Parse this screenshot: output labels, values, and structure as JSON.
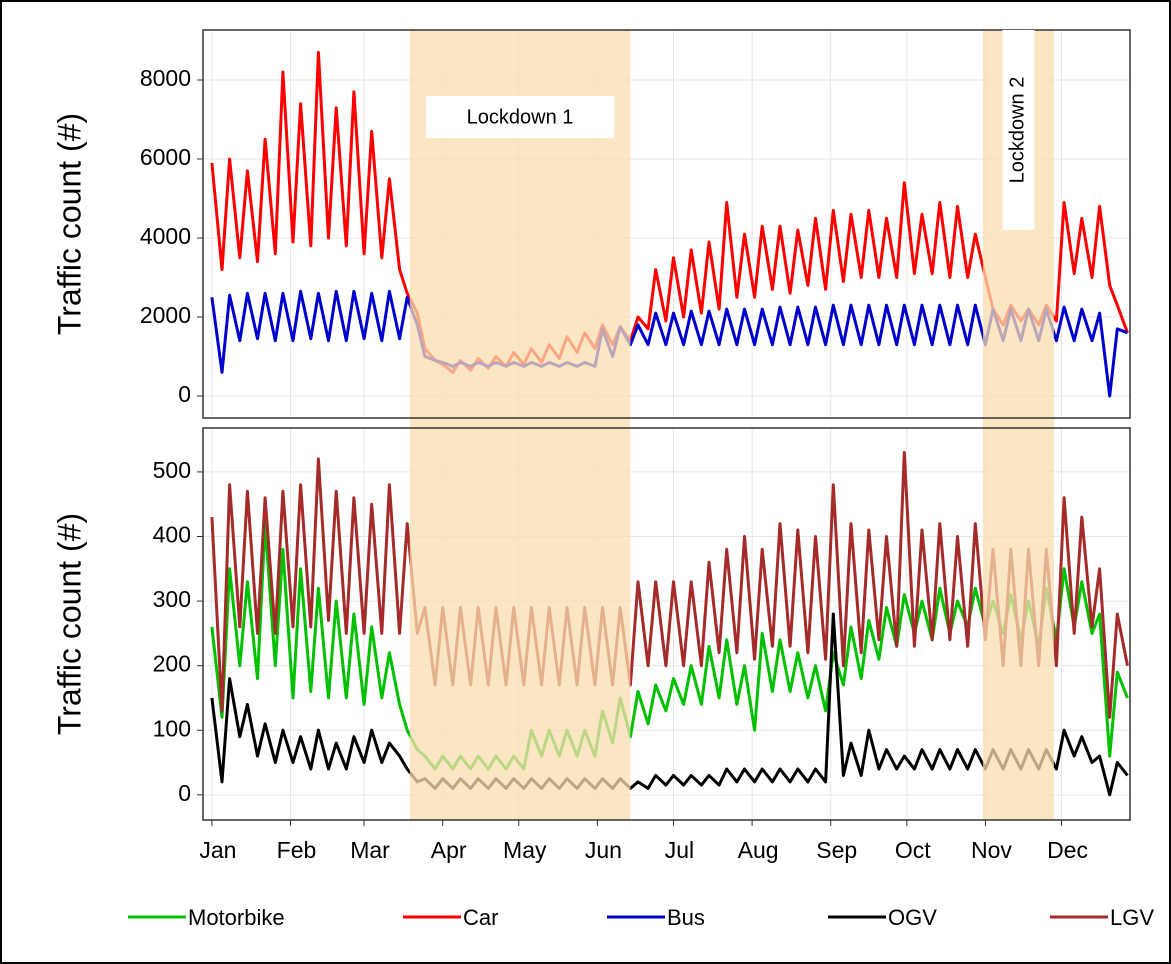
{
  "chart_data": [
    {
      "type": "line",
      "ylabel": "Traffic count (#)",
      "x": [
        1,
        5,
        8,
        12,
        15,
        19,
        22,
        26,
        29,
        33,
        36,
        40,
        43,
        47,
        50,
        54,
        57,
        61,
        64,
        68,
        71,
        75,
        78,
        82,
        85,
        89,
        92,
        96,
        99,
        103,
        106,
        110,
        113,
        117,
        120,
        124,
        127,
        131,
        134,
        138,
        141,
        145,
        148,
        152,
        155,
        159,
        162,
        166,
        169,
        173,
        176,
        180,
        183,
        187,
        190,
        194,
        197,
        201,
        204,
        208,
        211,
        215,
        218,
        222,
        225,
        229,
        232,
        236,
        239,
        243,
        246,
        250,
        253,
        257,
        260,
        264,
        267,
        271,
        274,
        278,
        281,
        285,
        288,
        292,
        295,
        299,
        302,
        306,
        309,
        313,
        316,
        320,
        323,
        327,
        330,
        334,
        337,
        341,
        344,
        348,
        351,
        355,
        358,
        362
      ],
      "xlim": [
        -2.5,
        363
      ],
      "xticks": [
        1,
        32,
        61,
        92,
        122,
        153,
        183,
        214,
        245,
        275,
        306,
        336
      ],
      "ylim": [
        -557,
        9266
      ],
      "yticks": [
        0,
        2000,
        4000,
        6000,
        8000
      ],
      "grid": true,
      "shaded_regions": [
        {
          "label": "Lockdown 1",
          "start": 79,
          "end": 166,
          "color": "#f9deb0"
        },
        {
          "label": "Lockdown 2",
          "start": 305,
          "end": 333,
          "color": "#f9deb0"
        }
      ],
      "series": [
        {
          "name": "Car",
          "color": "#ff0000",
          "values": [
            5900,
            3200,
            6000,
            3500,
            5700,
            3400,
            6500,
            3600,
            8200,
            3900,
            7400,
            3800,
            8700,
            4000,
            7300,
            3800,
            7700,
            3600,
            6700,
            3500,
            5500,
            3200,
            2600,
            2100,
            1200,
            900,
            800,
            600,
            900,
            650,
            950,
            700,
            1000,
            750,
            1100,
            800,
            1200,
            850,
            1300,
            950,
            1500,
            1100,
            1600,
            1200,
            1800,
            1300,
            1750,
            1400,
            2000,
            1700,
            3200,
            1900,
            3500,
            2000,
            3700,
            2100,
            3900,
            2200,
            4900,
            2500,
            4100,
            2500,
            4300,
            2700,
            4300,
            2600,
            4200,
            2800,
            4500,
            2700,
            4700,
            2900,
            4600,
            3000,
            4700,
            3000,
            4500,
            3000,
            5400,
            3100,
            4600,
            3100,
            4900,
            3000,
            4800,
            3000,
            4100,
            3000,
            2200,
            1800,
            2300,
            1900,
            2200,
            1800,
            2300,
            1900,
            4900,
            3100,
            4500,
            3000,
            4800,
            2800,
            2300,
            1600
          ]
        },
        {
          "name": "Bus",
          "color": "#0000cc",
          "values": [
            2500,
            600,
            2550,
            1400,
            2600,
            1450,
            2600,
            1400,
            2600,
            1400,
            2650,
            1450,
            2600,
            1400,
            2650,
            1400,
            2650,
            1450,
            2600,
            1400,
            2650,
            1450,
            2500,
            1800,
            1000,
            900,
            850,
            750,
            850,
            750,
            850,
            750,
            850,
            750,
            850,
            750,
            850,
            750,
            850,
            750,
            850,
            750,
            850,
            750,
            1700,
            1000,
            1750,
            1300,
            1800,
            1300,
            2100,
            1300,
            2100,
            1300,
            2150,
            1300,
            2150,
            1300,
            2200,
            1300,
            2200,
            1300,
            2200,
            1300,
            2250,
            1300,
            2250,
            1300,
            2250,
            1300,
            2300,
            1300,
            2300,
            1300,
            2300,
            1300,
            2300,
            1300,
            2300,
            1300,
            2300,
            1300,
            2300,
            1300,
            2300,
            1300,
            2300,
            1300,
            2200,
            1400,
            2200,
            1400,
            2200,
            1400,
            2200,
            1400,
            2250,
            1400,
            2200,
            1400,
            2100,
            0,
            1700,
            1600
          ]
        }
      ]
    },
    {
      "type": "line",
      "ylabel": "Traffic count (#)",
      "x": [
        1,
        5,
        8,
        12,
        15,
        19,
        22,
        26,
        29,
        33,
        36,
        40,
        43,
        47,
        50,
        54,
        57,
        61,
        64,
        68,
        71,
        75,
        78,
        82,
        85,
        89,
        92,
        96,
        99,
        103,
        106,
        110,
        113,
        117,
        120,
        124,
        127,
        131,
        134,
        138,
        141,
        145,
        148,
        152,
        155,
        159,
        162,
        166,
        169,
        173,
        176,
        180,
        183,
        187,
        190,
        194,
        197,
        201,
        204,
        208,
        211,
        215,
        218,
        222,
        225,
        229,
        232,
        236,
        239,
        243,
        246,
        250,
        253,
        257,
        260,
        264,
        267,
        271,
        274,
        278,
        281,
        285,
        288,
        292,
        295,
        299,
        302,
        306,
        309,
        313,
        316,
        320,
        323,
        327,
        330,
        334,
        337,
        341,
        344,
        348,
        351,
        355,
        358,
        362
      ],
      "xlim": [
        -2.5,
        363
      ],
      "xticks": [
        {
          "value": 1,
          "label": "Jan"
        },
        {
          "value": 32,
          "label": "Feb"
        },
        {
          "value": 61,
          "label": "Mar"
        },
        {
          "value": 92,
          "label": "Apr"
        },
        {
          "value": 122,
          "label": "May"
        },
        {
          "value": 153,
          "label": "Jun"
        },
        {
          "value": 183,
          "label": "Jul"
        },
        {
          "value": 214,
          "label": "Aug"
        },
        {
          "value": 245,
          "label": "Sep"
        },
        {
          "value": 275,
          "label": "Oct"
        },
        {
          "value": 306,
          "label": "Nov"
        },
        {
          "value": 336,
          "label": "Dec"
        }
      ],
      "ylim": [
        -39,
        568
      ],
      "yticks": [
        0,
        100,
        200,
        300,
        400,
        500
      ],
      "grid": true,
      "series": [
        {
          "name": "Motorbike",
          "color": "#00c000",
          "values": [
            260,
            120,
            350,
            200,
            330,
            180,
            420,
            200,
            380,
            150,
            350,
            160,
            320,
            150,
            300,
            150,
            280,
            140,
            260,
            150,
            220,
            140,
            100,
            70,
            60,
            40,
            60,
            40,
            60,
            40,
            60,
            40,
            60,
            40,
            60,
            40,
            100,
            60,
            100,
            60,
            100,
            60,
            100,
            60,
            130,
            80,
            150,
            90,
            160,
            110,
            170,
            130,
            180,
            140,
            200,
            140,
            230,
            150,
            240,
            140,
            200,
            100,
            250,
            160,
            240,
            160,
            220,
            150,
            200,
            130,
            220,
            170,
            260,
            180,
            270,
            210,
            290,
            230,
            310,
            250,
            300,
            240,
            320,
            250,
            300,
            260,
            320,
            260,
            300,
            250,
            310,
            240,
            300,
            230,
            320,
            240,
            350,
            260,
            330,
            250,
            280,
            60,
            190,
            150
          ]
        },
        {
          "name": "OGV",
          "color": "#000000",
          "values": [
            150,
            20,
            180,
            90,
            140,
            60,
            110,
            50,
            100,
            50,
            90,
            40,
            100,
            40,
            80,
            40,
            90,
            50,
            100,
            50,
            80,
            60,
            40,
            20,
            25,
            10,
            25,
            10,
            25,
            10,
            25,
            10,
            25,
            10,
            25,
            10,
            25,
            10,
            25,
            10,
            25,
            10,
            25,
            10,
            25,
            10,
            25,
            10,
            20,
            10,
            30,
            15,
            30,
            15,
            30,
            15,
            30,
            15,
            40,
            20,
            40,
            20,
            40,
            20,
            40,
            20,
            40,
            20,
            40,
            20,
            280,
            30,
            80,
            30,
            100,
            40,
            70,
            40,
            60,
            40,
            70,
            40,
            70,
            40,
            70,
            40,
            70,
            40,
            70,
            40,
            70,
            40,
            70,
            40,
            70,
            40,
            100,
            60,
            90,
            50,
            60,
            0,
            50,
            30
          ]
        },
        {
          "name": "LGV",
          "color": "#a52a2a",
          "values": [
            430,
            130,
            480,
            260,
            470,
            250,
            460,
            250,
            470,
            260,
            480,
            260,
            520,
            270,
            470,
            250,
            460,
            250,
            450,
            250,
            480,
            250,
            420,
            250,
            290,
            170,
            290,
            170,
            290,
            170,
            290,
            170,
            290,
            170,
            290,
            170,
            290,
            170,
            290,
            170,
            290,
            170,
            290,
            170,
            290,
            170,
            290,
            170,
            330,
            200,
            330,
            200,
            330,
            200,
            330,
            200,
            360,
            220,
            380,
            220,
            400,
            210,
            380,
            230,
            420,
            230,
            410,
            220,
            400,
            210,
            480,
            200,
            420,
            220,
            410,
            240,
            400,
            230,
            530,
            230,
            410,
            240,
            420,
            240,
            400,
            230,
            420,
            240,
            380,
            200,
            380,
            200,
            380,
            200,
            380,
            200,
            460,
            250,
            430,
            260,
            350,
            120,
            280,
            200
          ]
        }
      ]
    }
  ]
}
